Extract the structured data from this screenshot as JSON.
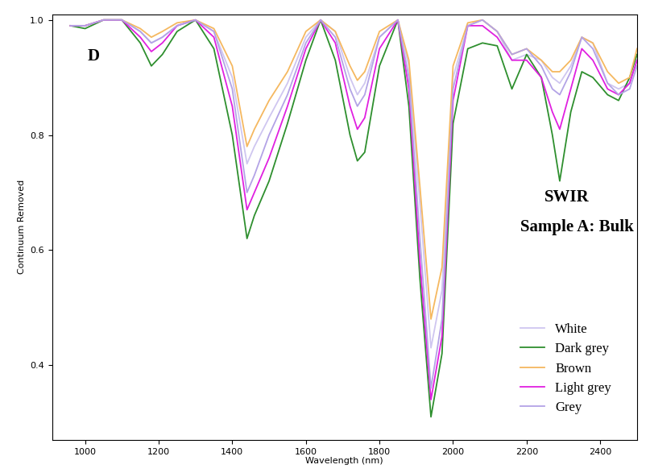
{
  "chart_data": {
    "type": "line",
    "annotations": [
      "D",
      "SWIR",
      "Sample A: Bulk"
    ],
    "x_label": "Wavelength (nm)",
    "y_label": "Continuum Removed",
    "x": [
      960,
      1000,
      1050,
      1100,
      1150,
      1180,
      1210,
      1250,
      1300,
      1350,
      1400,
      1440,
      1460,
      1500,
      1550,
      1600,
      1640,
      1680,
      1720,
      1740,
      1760,
      1800,
      1850,
      1880,
      1910,
      1940,
      1970,
      2000,
      2040,
      2080,
      2120,
      2160,
      2200,
      2240,
      2270,
      2290,
      2320,
      2350,
      2380,
      2420,
      2450,
      2480,
      2500
    ],
    "series": [
      {
        "name": "White",
        "color": "#cfc6f0",
        "values": [
          0.99,
          0.99,
          1.0,
          1.0,
          0.98,
          0.96,
          0.97,
          0.99,
          1.0,
          0.98,
          0.9,
          0.75,
          0.78,
          0.83,
          0.89,
          0.97,
          1.0,
          0.98,
          0.9,
          0.87,
          0.89,
          0.97,
          1.0,
          0.92,
          0.68,
          0.43,
          0.53,
          0.9,
          0.99,
          1.0,
          0.98,
          0.93,
          0.94,
          0.93,
          0.9,
          0.89,
          0.92,
          0.97,
          0.96,
          0.89,
          0.88,
          0.89,
          0.93
        ]
      },
      {
        "name": "Dark grey",
        "color": "#2e8f2e",
        "values": [
          0.99,
          0.985,
          1.0,
          1.0,
          0.96,
          0.92,
          0.94,
          0.98,
          1.0,
          0.95,
          0.8,
          0.62,
          0.66,
          0.72,
          0.82,
          0.93,
          1.0,
          0.93,
          0.8,
          0.755,
          0.77,
          0.92,
          1.0,
          0.85,
          0.55,
          0.31,
          0.42,
          0.82,
          0.95,
          0.96,
          0.955,
          0.88,
          0.94,
          0.9,
          0.8,
          0.72,
          0.84,
          0.91,
          0.9,
          0.87,
          0.86,
          0.9,
          0.94
        ]
      },
      {
        "name": "Brown",
        "color": "#f5b860",
        "values": [
          0.99,
          0.99,
          1.0,
          1.0,
          0.985,
          0.97,
          0.98,
          0.995,
          1.0,
          0.985,
          0.92,
          0.78,
          0.81,
          0.86,
          0.91,
          0.98,
          1.0,
          0.98,
          0.92,
          0.895,
          0.91,
          0.98,
          1.0,
          0.93,
          0.71,
          0.48,
          0.57,
          0.92,
          0.995,
          1.0,
          0.98,
          0.94,
          0.95,
          0.93,
          0.91,
          0.91,
          0.93,
          0.97,
          0.96,
          0.91,
          0.89,
          0.9,
          0.95
        ]
      },
      {
        "name": "Light grey",
        "color": "#e020e0",
        "values": [
          0.99,
          0.99,
          1.0,
          1.0,
          0.97,
          0.945,
          0.96,
          0.99,
          1.0,
          0.97,
          0.85,
          0.67,
          0.7,
          0.76,
          0.85,
          0.95,
          1.0,
          0.96,
          0.85,
          0.81,
          0.83,
          0.95,
          1.0,
          0.88,
          0.58,
          0.34,
          0.45,
          0.86,
          0.99,
          0.99,
          0.97,
          0.93,
          0.93,
          0.9,
          0.84,
          0.81,
          0.88,
          0.95,
          0.93,
          0.88,
          0.87,
          0.89,
          0.93
        ]
      },
      {
        "name": "Grey",
        "color": "#b3a3e6",
        "values": [
          0.99,
          0.99,
          1.0,
          1.0,
          0.98,
          0.96,
          0.97,
          0.99,
          1.0,
          0.98,
          0.88,
          0.7,
          0.73,
          0.8,
          0.87,
          0.96,
          1.0,
          0.97,
          0.88,
          0.85,
          0.87,
          0.97,
          1.0,
          0.9,
          0.62,
          0.36,
          0.48,
          0.88,
          0.99,
          1.0,
          0.98,
          0.94,
          0.95,
          0.92,
          0.88,
          0.87,
          0.91,
          0.97,
          0.95,
          0.89,
          0.87,
          0.88,
          0.92
        ]
      }
    ],
    "xlim": [
      910,
      2500
    ],
    "ylim": [
      0.27,
      1.01
    ],
    "xticks": [
      1000,
      1200,
      1400,
      1600,
      1800,
      2000,
      2200,
      2400
    ],
    "yticks": [
      0.4,
      0.6,
      0.8,
      {
        "value": 1,
        "label": "1.0"
      }
    ],
    "legend": "lower right",
    "grid": false
  }
}
